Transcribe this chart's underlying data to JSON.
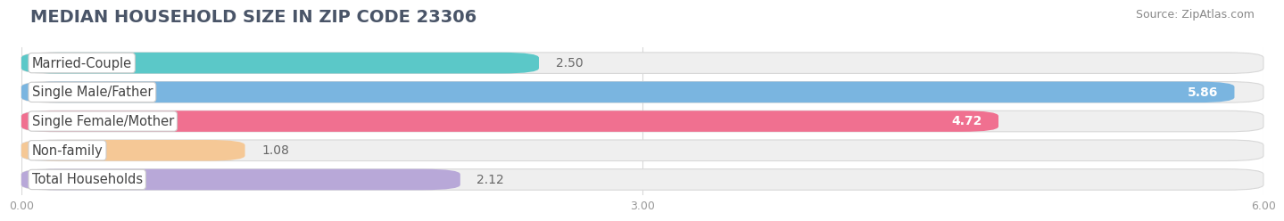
{
  "title": "MEDIAN HOUSEHOLD SIZE IN ZIP CODE 23306",
  "source": "Source: ZipAtlas.com",
  "categories": [
    "Married-Couple",
    "Single Male/Father",
    "Single Female/Mother",
    "Non-family",
    "Total Households"
  ],
  "values": [
    2.5,
    5.86,
    4.72,
    1.08,
    2.12
  ],
  "bar_colors": [
    "#5bc8c8",
    "#7ab5e0",
    "#f07090",
    "#f5c896",
    "#b8a8d8"
  ],
  "value_label_inside": [
    false,
    true,
    true,
    false,
    false
  ],
  "xlim": [
    0,
    6.0
  ],
  "xticks": [
    0.0,
    3.0,
    6.0
  ],
  "xtick_labels": [
    "0.00",
    "3.00",
    "6.00"
  ],
  "title_fontsize": 14,
  "title_color": "#4a5568",
  "source_fontsize": 9,
  "source_color": "#888888",
  "label_fontsize": 10.5,
  "value_fontsize": 10,
  "bar_height": 0.72,
  "bar_gap": 1.0,
  "background_color": "#ffffff",
  "grid_color": "#d8d8d8",
  "bar_bg_color": "#efefef",
  "bar_bg_edge_color": "#d8d8d8"
}
